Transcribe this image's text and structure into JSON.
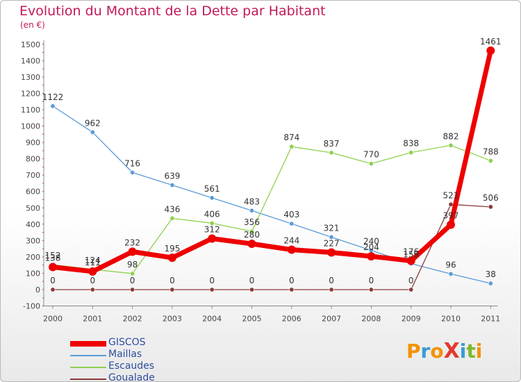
{
  "header": {
    "title": "Evolution du Montant de la Dette par Habitant",
    "unit": "(en €)"
  },
  "brand": {
    "text": "ProXiti",
    "letters": [
      "P",
      "r",
      "o",
      "X",
      "i",
      "t",
      "i"
    ],
    "colors": [
      "#f39200",
      "#3c9bd6",
      "#f39200",
      "#e23a2e",
      "#3c9bd6",
      "#7ab929",
      "#f39200"
    ]
  },
  "chart_data": {
    "type": "line",
    "title": "Evolution du Montant de la Dette par Habitant",
    "ylabel": "(en €)",
    "xlabel": "",
    "x": [
      "2000",
      "2001",
      "2002",
      "2003",
      "2004",
      "2005",
      "2006",
      "2007",
      "2008",
      "2009",
      "2010",
      "2011"
    ],
    "ylim": [
      -100,
      1500
    ],
    "yticks": [
      "-100",
      "0",
      "100",
      "200",
      "300",
      "400",
      "500",
      "600",
      "700",
      "800",
      "900",
      "1000",
      "1100",
      "1200",
      "1300",
      "1400",
      "1500"
    ],
    "grid": false,
    "legend": "bottom-left",
    "series": [
      {
        "name": "GISCOS",
        "color": "#ee0000",
        "style": "thick",
        "values": [
          138,
          111,
          232,
          195,
          312,
          280,
          244,
          227,
          204,
          176,
          397,
          1461
        ],
        "labels": [
          "138",
          "111",
          "232",
          "195",
          "312",
          "280",
          "244",
          "227",
          "204",
          "176",
          "397",
          "1461"
        ]
      },
      {
        "name": "Maillas",
        "color": "#5b9bd5",
        "style": "thin",
        "values": [
          1122,
          962,
          716,
          639,
          561,
          483,
          403,
          321,
          240,
          159,
          96,
          38
        ],
        "labels": [
          "1122",
          "962",
          "716",
          "639",
          "561",
          "483",
          "403",
          "321",
          "240",
          "159",
          "96",
          "38"
        ]
      },
      {
        "name": "Escaudes",
        "color": "#8fd14f",
        "style": "thin",
        "values": [
          152,
          124,
          98,
          436,
          406,
          356,
          874,
          837,
          770,
          838,
          882,
          788
        ],
        "labels": [
          "152",
          "124",
          "98",
          "436",
          "406",
          "356",
          "874",
          "837",
          "770",
          "838",
          "882",
          "788"
        ]
      },
      {
        "name": "Goualade",
        "color": "#8b3a3a",
        "style": "thin",
        "values": [
          0,
          0,
          0,
          0,
          0,
          0,
          0,
          0,
          0,
          0,
          521,
          506
        ],
        "labels": [
          "0",
          "0",
          "0",
          "0",
          "0",
          "0",
          "0",
          "0",
          "0",
          "0",
          "521",
          "506"
        ]
      }
    ]
  }
}
